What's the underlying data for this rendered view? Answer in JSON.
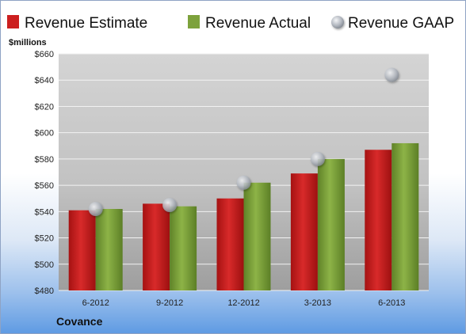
{
  "company": "Covance",
  "chart_data": {
    "type": "bar",
    "ylabel": "$millions",
    "ylim": [
      480,
      660
    ],
    "ytick_step": 20,
    "y_tick_prefix": "$",
    "grid": true,
    "legend_position": "top",
    "categories": [
      "6-2012",
      "9-2012",
      "12-2012",
      "3-2013",
      "6-2013"
    ],
    "series": [
      {
        "name": "Revenue Estimate",
        "kind": "bar",
        "color": "#cc1f1f",
        "values": [
          541,
          546,
          550,
          569,
          587
        ]
      },
      {
        "name": "Revenue Actual",
        "kind": "bar",
        "color": "#7da23c",
        "values": [
          542,
          544,
          562,
          580,
          592
        ]
      },
      {
        "name": "Revenue GAAP",
        "kind": "marker",
        "color": "#b8bec8",
        "values": [
          542,
          545,
          562,
          580,
          644
        ]
      }
    ]
  }
}
